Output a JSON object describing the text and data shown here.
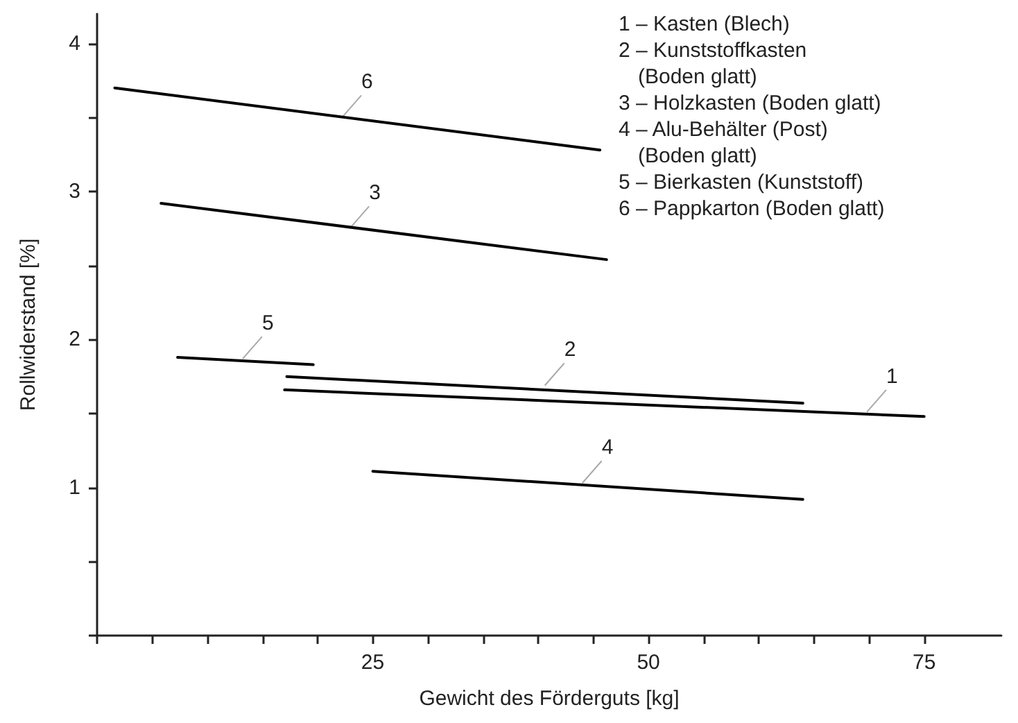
{
  "chart_data": {
    "type": "line",
    "xlabel": "Gewicht des Förderguts [kg]",
    "ylabel": "Rollwiderstand [%]",
    "series": [
      {
        "color": "#000000",
        "x": [
          17,
          75
        ],
        "values": [
          1.66,
          1.48
        ]
      },
      {
        "color": "#000000",
        "x": [
          17.2,
          64
        ],
        "values": [
          1.75,
          1.57
        ]
      },
      {
        "color": "#000000",
        "x": [
          5.8,
          46.2
        ],
        "values": [
          2.92,
          2.54
        ]
      },
      {
        "color": "#000000",
        "x": [
          25,
          64
        ],
        "values": [
          1.11,
          0.92
        ]
      },
      {
        "color": "#000000",
        "x": [
          7.3,
          19.6
        ],
        "values": [
          1.88,
          1.83
        ]
      },
      {
        "color": "#000000",
        "x": [
          1.6,
          45.6
        ],
        "values": [
          3.7,
          3.28
        ]
      }
    ],
    "xlim": [
      0,
      82
    ],
    "xticks": [
      {
        "value": 0,
        "label": null
      },
      {
        "value": 5,
        "label": null
      },
      {
        "value": 10,
        "label": null
      },
      {
        "value": 15,
        "label": null
      },
      {
        "value": 20,
        "label": null
      },
      25,
      {
        "value": 30,
        "label": null
      },
      {
        "value": 35,
        "label": null
      },
      {
        "value": 40,
        "label": null
      },
      {
        "value": 45,
        "label": null
      },
      50,
      {
        "value": 55,
        "label": null
      },
      {
        "value": 60,
        "label": null
      },
      {
        "value": 65,
        "label": null
      },
      {
        "value": 70,
        "label": null
      },
      75
    ],
    "ylim": [
      0,
      4.2
    ],
    "yticks": [
      {
        "value": 0,
        "label": null
      },
      {
        "value": 0.5,
        "label": null
      },
      1,
      {
        "value": 1.5,
        "label": null
      },
      2,
      {
        "value": 2.5,
        "label": null
      },
      3,
      {
        "value": 3.5,
        "label": null
      },
      4
    ],
    "annotations": [
      {
        "text": "1",
        "x": 69.8,
        "y": 1.51
      },
      {
        "text": "2",
        "x": 40.6,
        "y": 1.69
      },
      {
        "text": "3",
        "x": 22.9,
        "y": 2.75
      },
      {
        "text": "4",
        "x": 44,
        "y": 1.03
      },
      {
        "text": "5",
        "x": 13.2,
        "y": 1.87
      },
      {
        "text": "6",
        "x": 22.2,
        "y": 3.5
      },
      "1 – Kasten (Blech)",
      "2 – Kunststoffkasten\n(Boden glatt)",
      "3 – Holzkasten (Boden glatt)",
      "4 – Alu-Behälter (Post)\n(Boden glatt)",
      "5 – Bierkasten (Kunststoff)",
      "6 – Pappkarton (Boden glatt)"
    ],
    "grid": false,
    "marker": "none",
    "line_style": "solid"
  }
}
